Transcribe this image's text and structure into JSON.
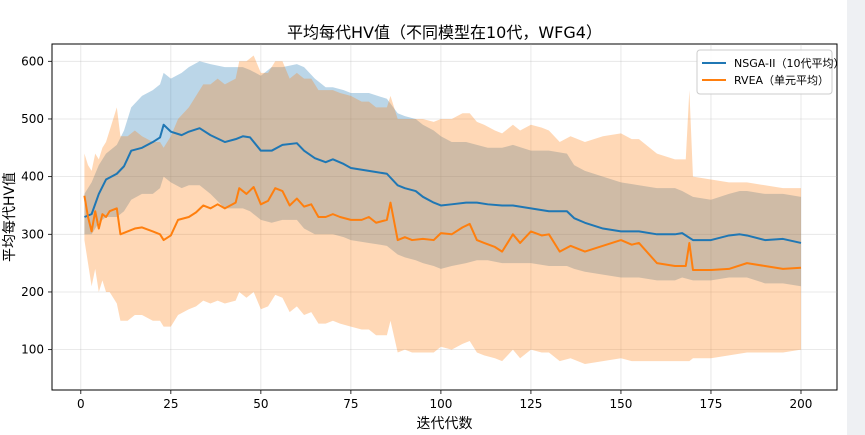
{
  "chart_data": {
    "type": "line",
    "title": "平均每代HV值（不同模型在10代，WFG4）",
    "xlabel": "迭代代数",
    "ylabel": "平均每代HV值",
    "xlim": [
      -8,
      210
    ],
    "ylim": [
      30,
      630
    ],
    "xticks": [
      0,
      25,
      50,
      75,
      100,
      125,
      150,
      175,
      200
    ],
    "yticks": [
      100,
      200,
      300,
      400,
      500,
      600
    ],
    "grid": true,
    "legend_position": "top-right",
    "series": [
      {
        "name": "NSGA-II（10代平均）",
        "color": "#1f77b4",
        "band_color": "#1f77b4",
        "band_opacity": 0.3,
        "x": [
          1,
          3,
          5,
          7,
          10,
          12,
          14,
          17,
          20,
          22,
          23,
          25,
          28,
          30,
          33,
          36,
          40,
          43,
          45,
          47,
          50,
          53,
          56,
          60,
          62,
          65,
          68,
          70,
          73,
          75,
          80,
          85,
          88,
          90,
          93,
          95,
          98,
          100,
          103,
          107,
          110,
          113,
          117,
          120,
          125,
          130,
          135,
          137,
          140,
          145,
          150,
          155,
          160,
          165,
          167,
          170,
          175,
          180,
          183,
          185,
          190,
          195,
          200
        ],
        "mean": [
          330,
          335,
          370,
          395,
          405,
          418,
          445,
          450,
          460,
          468,
          490,
          478,
          472,
          478,
          484,
          472,
          460,
          465,
          470,
          468,
          445,
          445,
          455,
          458,
          445,
          432,
          425,
          430,
          422,
          415,
          410,
          405,
          385,
          380,
          375,
          365,
          355,
          350,
          352,
          355,
          355,
          352,
          350,
          350,
          345,
          340,
          340,
          328,
          320,
          310,
          305,
          305,
          300,
          300,
          302,
          290,
          290,
          298,
          300,
          298,
          290,
          292,
          285
        ],
        "upper": [
          370,
          390,
          420,
          440,
          455,
          480,
          520,
          540,
          550,
          560,
          580,
          570,
          580,
          590,
          600,
          595,
          590,
          590,
          590,
          585,
          575,
          590,
          590,
          595,
          590,
          570,
          555,
          555,
          550,
          545,
          545,
          535,
          510,
          505,
          500,
          490,
          480,
          470,
          460,
          460,
          455,
          450,
          450,
          455,
          445,
          445,
          440,
          420,
          410,
          400,
          390,
          385,
          380,
          380,
          375,
          365,
          360,
          370,
          375,
          375,
          370,
          370,
          365
        ],
        "lower": [
          300,
          300,
          320,
          330,
          330,
          340,
          360,
          370,
          370,
          380,
          400,
          390,
          380,
          385,
          385,
          370,
          345,
          345,
          345,
          340,
          325,
          320,
          325,
          325,
          310,
          300,
          300,
          300,
          295,
          290,
          285,
          280,
          265,
          260,
          255,
          250,
          245,
          240,
          245,
          250,
          255,
          255,
          250,
          250,
          250,
          245,
          245,
          240,
          235,
          230,
          225,
          225,
          220,
          220,
          225,
          220,
          220,
          225,
          225,
          225,
          215,
          215,
          210
        ]
      },
      {
        "name": "RVEA（单元平均）",
        "color": "#ff7f0e",
        "band_color": "#ff7f0e",
        "band_opacity": 0.3,
        "x": [
          1,
          2,
          3,
          4,
          5,
          6,
          7,
          8,
          10,
          11,
          13,
          15,
          17,
          20,
          22,
          23,
          25,
          27,
          30,
          32,
          34,
          36,
          38,
          40,
          43,
          44,
          46,
          48,
          50,
          52,
          54,
          56,
          58,
          60,
          62,
          64,
          66,
          68,
          70,
          72,
          75,
          78,
          80,
          82,
          85,
          86,
          88,
          90,
          92,
          95,
          98,
          100,
          103,
          106,
          108,
          110,
          112,
          115,
          117,
          120,
          122,
          125,
          128,
          130,
          133,
          136,
          140,
          145,
          150,
          153,
          155,
          160,
          165,
          168,
          169,
          170,
          175,
          180,
          185,
          190,
          195,
          200
        ],
        "mean": [
          367,
          330,
          305,
          340,
          310,
          335,
          330,
          340,
          345,
          300,
          305,
          310,
          312,
          305,
          300,
          290,
          298,
          325,
          330,
          338,
          350,
          345,
          352,
          345,
          355,
          380,
          370,
          382,
          352,
          358,
          380,
          375,
          350,
          362,
          348,
          352,
          330,
          330,
          335,
          330,
          325,
          325,
          330,
          320,
          325,
          355,
          290,
          295,
          290,
          292,
          290,
          302,
          300,
          312,
          318,
          290,
          285,
          278,
          270,
          300,
          285,
          305,
          298,
          300,
          270,
          280,
          270,
          280,
          290,
          282,
          285,
          250,
          245,
          245,
          285,
          238,
          238,
          240,
          250,
          245,
          240,
          242
        ],
        "upper": [
          440,
          420,
          410,
          440,
          430,
          450,
          460,
          480,
          520,
          470,
          470,
          480,
          470,
          460,
          460,
          450,
          470,
          500,
          520,
          540,
          560,
          560,
          570,
          560,
          570,
          600,
          600,
          610,
          580,
          580,
          600,
          600,
          570,
          580,
          570,
          570,
          550,
          550,
          550,
          545,
          540,
          530,
          530,
          520,
          520,
          540,
          500,
          500,
          500,
          500,
          495,
          500,
          500,
          510,
          510,
          495,
          490,
          480,
          475,
          490,
          480,
          490,
          485,
          480,
          460,
          470,
          460,
          470,
          475,
          465,
          465,
          440,
          430,
          430,
          550,
          400,
          395,
          390,
          390,
          385,
          380,
          380
        ],
        "lower": [
          290,
          250,
          210,
          240,
          200,
          220,
          200,
          200,
          180,
          150,
          150,
          160,
          160,
          150,
          150,
          140,
          140,
          160,
          170,
          175,
          185,
          180,
          185,
          180,
          185,
          200,
          190,
          200,
          170,
          175,
          195,
          190,
          165,
          175,
          160,
          165,
          145,
          145,
          150,
          145,
          140,
          135,
          135,
          125,
          125,
          150,
          95,
          100,
          95,
          95,
          95,
          105,
          100,
          110,
          115,
          95,
          90,
          85,
          80,
          100,
          85,
          100,
          95,
          95,
          80,
          85,
          75,
          80,
          85,
          80,
          80,
          80,
          80,
          80,
          80,
          85,
          85,
          90,
          95,
          95,
          95,
          100
        ]
      }
    ]
  }
}
